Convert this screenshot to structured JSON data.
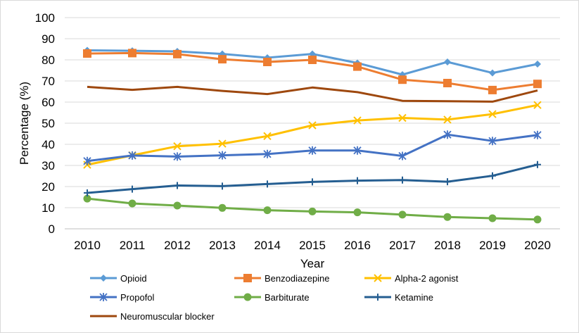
{
  "chart_data": {
    "type": "line",
    "xlabel": "Year",
    "ylabel": "Percentage (%)",
    "ylim": [
      0,
      100
    ],
    "yticks": [
      "0",
      "10",
      "20",
      "30",
      "40",
      "50",
      "60",
      "70",
      "80",
      "90",
      "100"
    ],
    "categories": [
      "2010",
      "2011",
      "2012",
      "2013",
      "2014",
      "2015",
      "2016",
      "2017",
      "2018",
      "2019",
      "2020"
    ],
    "grid": "horizontal",
    "legend_position": "bottom",
    "series": [
      {
        "name": "Opioid",
        "color": "#5b9bd5",
        "marker": "diamond",
        "values": [
          84.5,
          84.3,
          84.0,
          82.8,
          81.0,
          82.8,
          78.5,
          73.0,
          79.0,
          73.8,
          78.0
        ]
      },
      {
        "name": "Benzodiazepine",
        "color": "#ed7d31",
        "marker": "square",
        "values": [
          83.0,
          83.2,
          82.7,
          80.3,
          79.0,
          80.0,
          76.8,
          70.6,
          69.0,
          65.7,
          68.6
        ]
      },
      {
        "name": "Alpha-2 agonist",
        "color": "#ffc000",
        "marker": "x",
        "values": [
          30.3,
          34.8,
          39.1,
          40.3,
          43.9,
          49.0,
          51.3,
          52.5,
          51.7,
          54.3,
          58.6
        ]
      },
      {
        "name": "Propofol",
        "color": "#4472c4",
        "marker": "star",
        "values": [
          32.1,
          34.7,
          34.2,
          34.8,
          35.4,
          37.1,
          37.1,
          34.5,
          44.6,
          41.6,
          44.4
        ]
      },
      {
        "name": "Barbiturate",
        "color": "#70ad47",
        "marker": "circle",
        "values": [
          14.3,
          12.0,
          11.0,
          9.9,
          8.8,
          8.2,
          7.8,
          6.7,
          5.6,
          5.0,
          4.4
        ]
      },
      {
        "name": "Ketamine",
        "color": "#255e91",
        "marker": "plus",
        "values": [
          17.0,
          18.8,
          20.5,
          20.2,
          21.2,
          22.2,
          22.8,
          23.1,
          22.3,
          25.1,
          30.4
        ]
      },
      {
        "name": "Neuromuscular blocker",
        "color": "#9e480e",
        "marker": "none",
        "values": [
          67.2,
          65.8,
          67.2,
          65.3,
          63.8,
          66.9,
          64.7,
          60.6,
          60.4,
          60.2,
          65.5
        ]
      }
    ]
  }
}
